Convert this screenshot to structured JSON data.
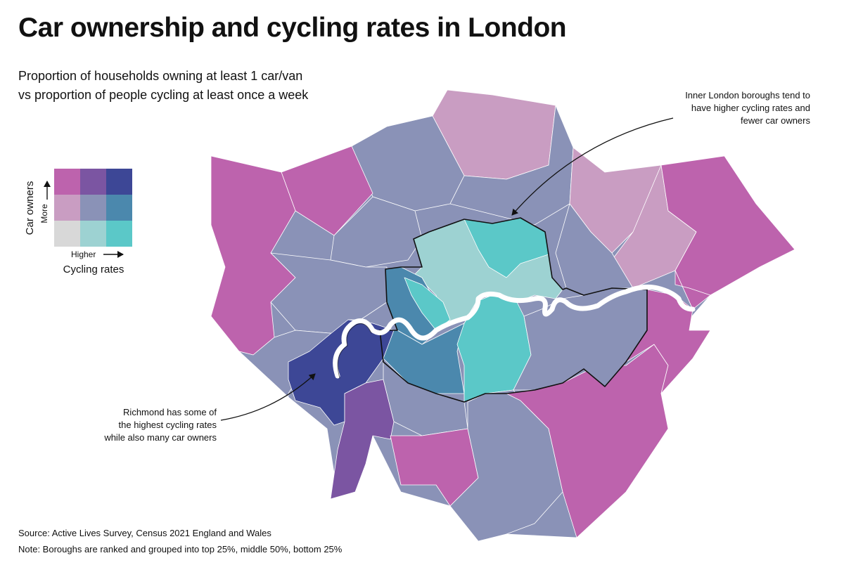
{
  "title": "Car ownership and cycling rates in London",
  "subtitle": [
    "Proportion of households owning at least 1 car/van",
    "vs proportion of people cycling at least once a week"
  ],
  "legend": {
    "y_axis_label": "Car owners",
    "y_axis_direction": "More",
    "x_axis_label": "Cycling rates",
    "x_axis_direction": "Higher",
    "grid_colors": [
      [
        "#bd63ad",
        "#7b55a2",
        "#3d4796"
      ],
      [
        "#c99dc2",
        "#8a92b7",
        "#4b88ad"
      ],
      [
        "#d8d8d8",
        "#9dd2d2",
        "#5bc8c8"
      ]
    ]
  },
  "annotations": {
    "inner_london": [
      "Inner London boroughs tend to",
      "have higher cycling rates and",
      "fewer car owners"
    ],
    "richmond": [
      "Richmond has some of",
      "the highest cycling rates",
      "while also many car owners"
    ]
  },
  "regions": [
    {
      "name": "enfield",
      "color": "#c99dc2"
    },
    {
      "name": "barnet",
      "color": "#8a92b7"
    },
    {
      "name": "haringey",
      "color": "#8a92b7"
    },
    {
      "name": "harrow",
      "color": "#bd63ad"
    },
    {
      "name": "hillingdon",
      "color": "#bd63ad"
    },
    {
      "name": "brent",
      "color": "#8a92b7"
    },
    {
      "name": "ealing",
      "color": "#8a92b7"
    },
    {
      "name": "hounslow",
      "color": "#8a92b7"
    },
    {
      "name": "waltham-forest",
      "color": "#c99dc2"
    },
    {
      "name": "redbridge",
      "color": "#c99dc2"
    },
    {
      "name": "havering",
      "color": "#bd63ad"
    },
    {
      "name": "barking-dagenham",
      "color": "#bd63ad"
    },
    {
      "name": "newham",
      "color": "#8a92b7"
    },
    {
      "name": "inner-north",
      "color": "#9dd2d2"
    },
    {
      "name": "hackney-islington",
      "color": "#5bc8c8"
    },
    {
      "name": "kensington-westminster",
      "color": "#4b88ad"
    },
    {
      "name": "hammersmith-fulham",
      "color": "#5bc8c8"
    },
    {
      "name": "wandsworth",
      "color": "#4b88ad"
    },
    {
      "name": "lambeth-southwark",
      "color": "#5bc8c8"
    },
    {
      "name": "richmond",
      "color": "#3d4796"
    },
    {
      "name": "kingston",
      "color": "#7b55a2"
    },
    {
      "name": "merton",
      "color": "#8a92b7"
    },
    {
      "name": "sutton",
      "color": "#bd63ad"
    },
    {
      "name": "croydon",
      "color": "#8a92b7"
    },
    {
      "name": "bromley",
      "color": "#bd63ad"
    },
    {
      "name": "lewisham-greenwich",
      "color": "#8a92b7"
    },
    {
      "name": "bexley",
      "color": "#bd63ad"
    }
  ],
  "river_color": "#ffffff",
  "footer": {
    "source": "Source: Active Lives Survey, Census 2021 England and Wales",
    "note": "Note: Boroughs are ranked and grouped into top 25%, middle 50%, bottom 25%"
  }
}
